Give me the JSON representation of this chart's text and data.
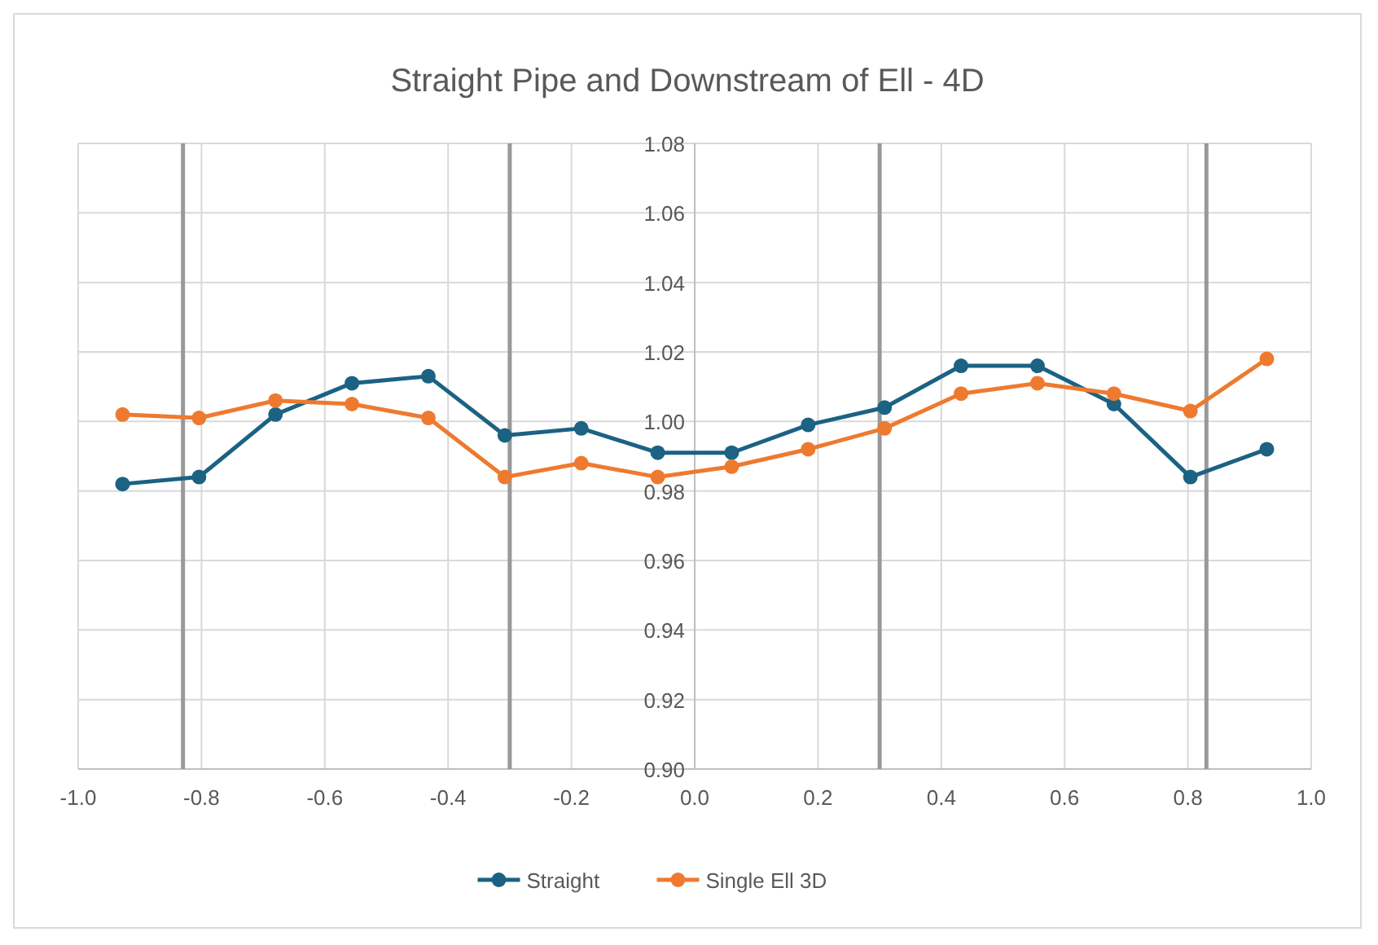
{
  "chart_data": {
    "type": "line",
    "title": "Straight Pipe and Downstream of Ell - 4D",
    "x": [
      -0.928,
      -0.804,
      -0.68,
      -0.556,
      -0.432,
      -0.308,
      -0.184,
      -0.06,
      0.06,
      0.184,
      0.308,
      0.432,
      0.556,
      0.68,
      0.804,
      0.928
    ],
    "series": [
      {
        "name": "Straight",
        "color": "#1b6283",
        "values": [
          0.982,
          0.984,
          1.002,
          1.011,
          1.013,
          0.996,
          0.998,
          0.991,
          0.991,
          0.999,
          1.004,
          1.016,
          1.016,
          1.005,
          0.984,
          0.992
        ]
      },
      {
        "name": "Single Ell 3D",
        "color": "#ee7a30",
        "values": [
          1.002,
          1.001,
          1.006,
          1.005,
          1.001,
          0.984,
          0.988,
          0.984,
          0.987,
          0.992,
          0.998,
          1.008,
          1.011,
          1.008,
          1.003,
          1.018
        ]
      }
    ],
    "xlim": [
      -1,
      1
    ],
    "xticks": [
      {
        "value": -1,
        "label": "-1.0"
      },
      -0.8,
      -0.6,
      -0.4,
      -0.2,
      {
        "value": 0,
        "label": "0.0"
      },
      0.2,
      0.4,
      0.6,
      0.8,
      {
        "value": 1,
        "label": "1.0"
      }
    ],
    "ylim": [
      0.9,
      1.08
    ],
    "yticks": [
      {
        "value": 0.9,
        "label": "0.90"
      },
      0.92,
      0.94,
      0.96,
      0.98,
      {
        "value": 1,
        "label": "1.00"
      },
      1.02,
      1.04,
      1.06,
      1.08
    ],
    "ref_lines": [
      {
        "axis": "x",
        "value": -0.83,
        "color": "#999999"
      },
      {
        "axis": "x",
        "value": -0.3,
        "color": "#999999"
      },
      {
        "axis": "x",
        "value": 0.3,
        "color": "#999999"
      },
      {
        "axis": "x",
        "value": 0.83,
        "color": "#999999"
      }
    ],
    "grid": true,
    "legend": "bottom",
    "marker": "circle",
    "line_style": "solid"
  }
}
